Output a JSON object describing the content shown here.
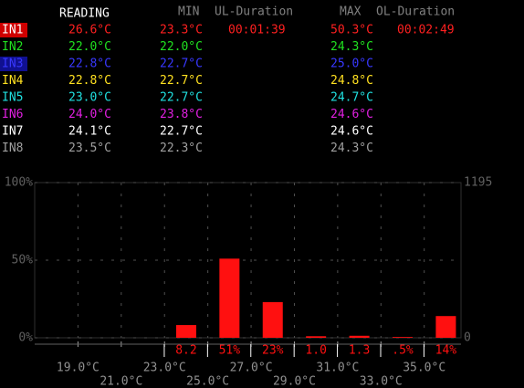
{
  "header": {
    "reading": "READING",
    "min": "MIN",
    "ul_duration": "UL-Duration",
    "max": "MAX",
    "ol_duration": "OL-Duration"
  },
  "rows": [
    {
      "label": "IN1",
      "color": "#ff2020",
      "reading": "26.6°C",
      "min": "23.3°C",
      "ul_duration": "00:01:39",
      "max": "50.3°C",
      "ol_duration": "00:02:49"
    },
    {
      "label": "IN2",
      "color": "#20e020",
      "reading": "22.0°C",
      "min": "22.0°C",
      "max": "24.3°C"
    },
    {
      "label": "IN3",
      "color": "#3838ff",
      "reading": "22.8°C",
      "min": "22.7°C",
      "max": "25.0°C"
    },
    {
      "label": "IN4",
      "color": "#ffe020",
      "reading": "22.8°C",
      "min": "22.7°C",
      "max": "24.8°C"
    },
    {
      "label": "IN5",
      "color": "#20e0e0",
      "reading": "23.0°C",
      "min": "22.7°C",
      "max": "24.7°C"
    },
    {
      "label": "IN6",
      "color": "#e020e0",
      "reading": "24.0°C",
      "min": "23.8°C",
      "max": "24.6°C"
    },
    {
      "label": "IN7",
      "color": "#ffffff",
      "reading": "24.1°C",
      "min": "22.7°C",
      "max": "24.6°C"
    },
    {
      "label": "IN8",
      "color": "#a0a0a0",
      "reading": "23.5°C",
      "min": "22.3°C",
      "max": "24.3°C"
    }
  ],
  "histogram": {
    "x": [
      24,
      26,
      28,
      30,
      32,
      34,
      36
    ],
    "values": [
      8.2,
      51,
      23,
      1.0,
      1.3,
      0.5,
      14
    ],
    "value_labels": [
      "8.2",
      "51%",
      "23%",
      "1.0",
      "1.3",
      ".5%",
      "14%"
    ],
    "color": "#ff1010",
    "xlim": [
      17,
      36.7
    ],
    "xticks": [
      {
        "value": 19,
        "label": "19.0°C"
      },
      {
        "value": 21,
        "label": "21.0°C"
      },
      {
        "value": 23,
        "label": "23.0°C"
      },
      {
        "value": 25,
        "label": "25.0°C"
      },
      {
        "value": 27,
        "label": "27.0°C"
      },
      {
        "value": 29,
        "label": "29.0°C"
      },
      {
        "value": 31,
        "label": "31.0°C"
      },
      {
        "value": 33,
        "label": "33.0°C"
      },
      {
        "value": 35,
        "label": "35.0°C"
      }
    ],
    "ylim": [
      0,
      100
    ],
    "yticks": [
      {
        "value": 0,
        "label": "0%"
      },
      {
        "value": 50,
        "label": "50%"
      },
      {
        "value": 100,
        "label": "100%"
      }
    ],
    "y2lim": [
      0,
      1195
    ],
    "y2ticks": [
      0,
      1195
    ],
    "grid": true
  }
}
